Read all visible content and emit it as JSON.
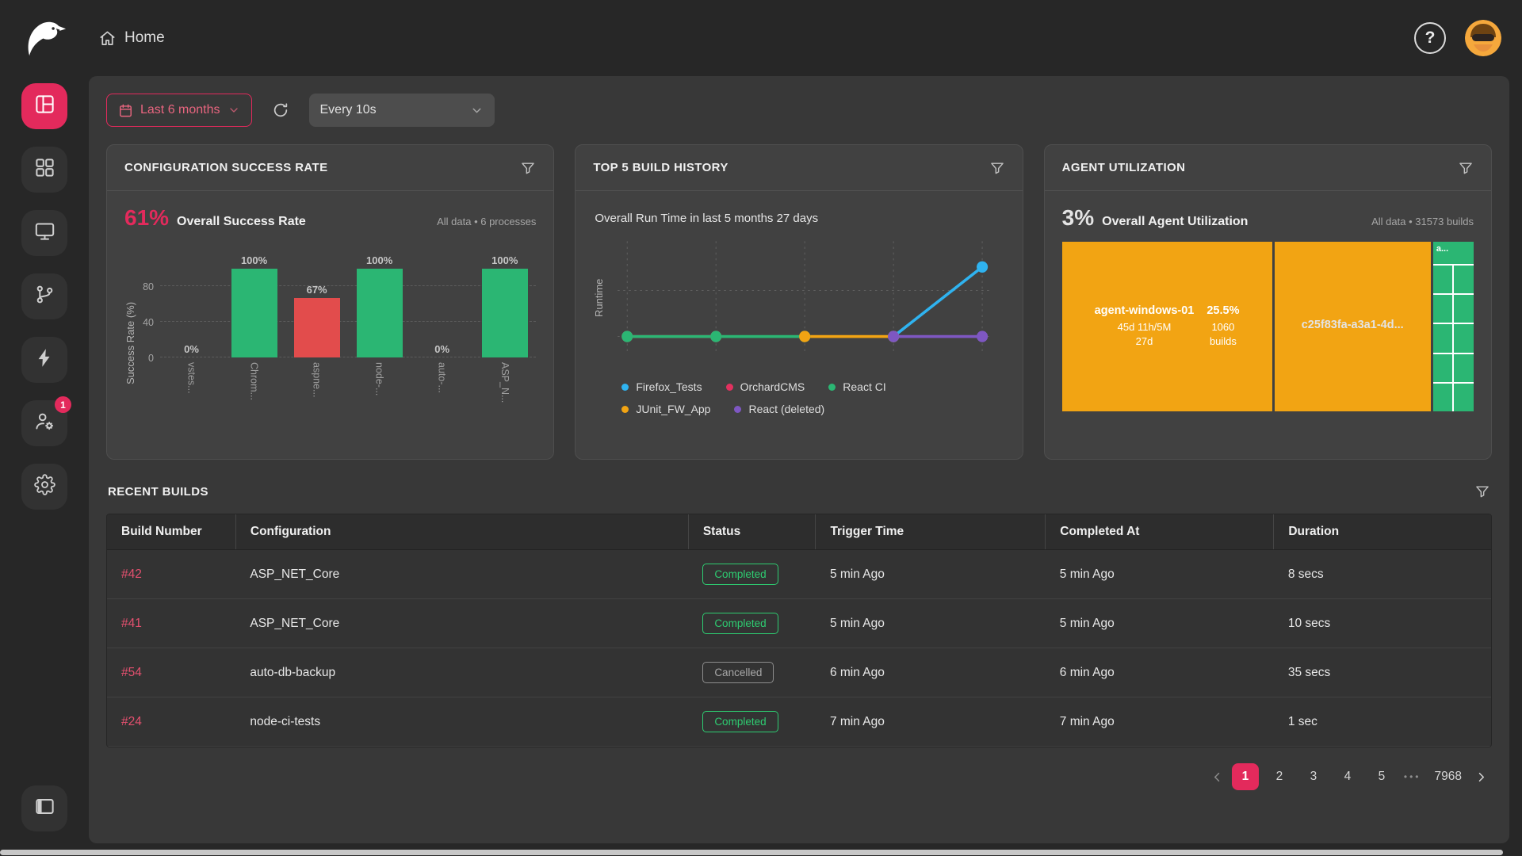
{
  "header": {
    "breadcrumb": "Home",
    "help_label": "?"
  },
  "toolbar": {
    "date_range": "Last 6 months",
    "refresh_interval": "Every 10s"
  },
  "sidebar": {
    "items": [
      {
        "icon": "dashboard-icon",
        "active": true
      },
      {
        "icon": "grid-icon"
      },
      {
        "icon": "monitor-icon"
      },
      {
        "icon": "branch-icon"
      },
      {
        "icon": "bolt-icon"
      },
      {
        "icon": "user-gear-icon",
        "badge": "1"
      },
      {
        "icon": "gear-icon"
      }
    ],
    "bottom_icon": "collapse-icon"
  },
  "cards": {
    "success_rate": {
      "title": "CONFIGURATION SUCCESS RATE",
      "metric": "61%",
      "metric_label": "Overall Success Rate",
      "scope": "All data • 6 processes",
      "chart_data": {
        "type": "bar",
        "categories": [
          "vstes...",
          "Chrom...",
          "aspne...",
          "node-...",
          "auto-...",
          "ASP_N..."
        ],
        "values": [
          0,
          100,
          67,
          100,
          0,
          100
        ],
        "value_labels": [
          "0%",
          "100%",
          "67%",
          "100%",
          "0%",
          "100%"
        ],
        "bar_colors": [
          "#2bb673",
          "#2bb673",
          "#e24c4c",
          "#2bb673",
          "#2bb673",
          "#2bb673"
        ],
        "ylabel": "Success Rate (%)",
        "yticks": [
          0,
          40,
          80
        ],
        "ylim": [
          0,
          100
        ]
      }
    },
    "build_history": {
      "title": "TOP 5 BUILD HISTORY",
      "subtitle": "Overall Run Time in last 5 months 27 days",
      "chart_data": {
        "type": "line",
        "ylabel": "Runtime",
        "x_points": 5,
        "series": [
          {
            "name": "Firefox_Tests",
            "color": "#2fb3f0",
            "points": [
              [
                3,
                10
              ],
              [
                4,
                78
              ]
            ]
          },
          {
            "name": "OrchardCMS",
            "color": "#e2315f",
            "points": [
              [
                0,
                10
              ],
              [
                1,
                10
              ]
            ]
          },
          {
            "name": "React CI",
            "color": "#2bb673",
            "points": [
              [
                0,
                10
              ],
              [
                1,
                10
              ],
              [
                2,
                10
              ]
            ]
          },
          {
            "name": "JUnit_FW_App",
            "color": "#f2a413",
            "points": [
              [
                2,
                10
              ],
              [
                3,
                10
              ]
            ]
          },
          {
            "name": "React (deleted)",
            "color": "#7e57c2",
            "points": [
              [
                3,
                10
              ],
              [
                4,
                10
              ]
            ]
          }
        ]
      },
      "legend_rows": [
        [
          {
            "label": "Firefox_Tests",
            "color": "#2fb3f0"
          },
          {
            "label": "OrchardCMS",
            "color": "#e2315f"
          },
          {
            "label": "React CI",
            "color": "#2bb673"
          }
        ],
        [
          {
            "label": "JUnit_FW_App",
            "color": "#f2a413"
          },
          {
            "label": "React (deleted)",
            "color": "#7e57c2"
          }
        ]
      ]
    },
    "agent_utilization": {
      "title": "AGENT UTILIZATION",
      "metric": "3%",
      "metric_label": "Overall Agent Utilization",
      "scope": "All data • 31573 builds",
      "treemap": {
        "cells": [
          {
            "name": "agent-windows-01",
            "percent": "25.5%",
            "duration_line1": "45d 11h/5M",
            "duration_line2": "27d",
            "builds": "1060",
            "builds_label": "builds",
            "color": "#f2a413"
          },
          {
            "name": "c25f83fa-a3a1-4d...",
            "color": "#f2a413"
          },
          {
            "name": "a...",
            "color": "#2bb673",
            "grid": {
              "rows": 5,
              "cols": 2
            }
          }
        ]
      }
    }
  },
  "recent_builds": {
    "title": "RECENT BUILDS",
    "columns": [
      "Build Number",
      "Configuration",
      "Status",
      "Trigger Time",
      "Completed At",
      "Duration"
    ],
    "rows": [
      {
        "build": "#42",
        "config": "ASP_NET_Core",
        "status": "Completed",
        "trigger": "5 min Ago",
        "completed": "5 min Ago",
        "duration": "8 secs"
      },
      {
        "build": "#41",
        "config": "ASP_NET_Core",
        "status": "Completed",
        "trigger": "5 min Ago",
        "completed": "5 min Ago",
        "duration": "10 secs"
      },
      {
        "build": "#54",
        "config": "auto-db-backup",
        "status": "Cancelled",
        "trigger": "6 min Ago",
        "completed": "6 min Ago",
        "duration": "35 secs"
      },
      {
        "build": "#24",
        "config": "node-ci-tests",
        "status": "Completed",
        "trigger": "7 min Ago",
        "completed": "7 min Ago",
        "duration": "1 sec"
      }
    ],
    "pagination": {
      "pages": [
        "1",
        "2",
        "3",
        "4",
        "5"
      ],
      "active": "1",
      "ellipsis": "•••",
      "last_page": "7968"
    }
  },
  "colors": {
    "accent": "#e32a5c",
    "green": "#2bb673",
    "red": "#e24c4c",
    "orange": "#f2a413",
    "blue": "#2fb3f0",
    "purple": "#7e57c2"
  }
}
